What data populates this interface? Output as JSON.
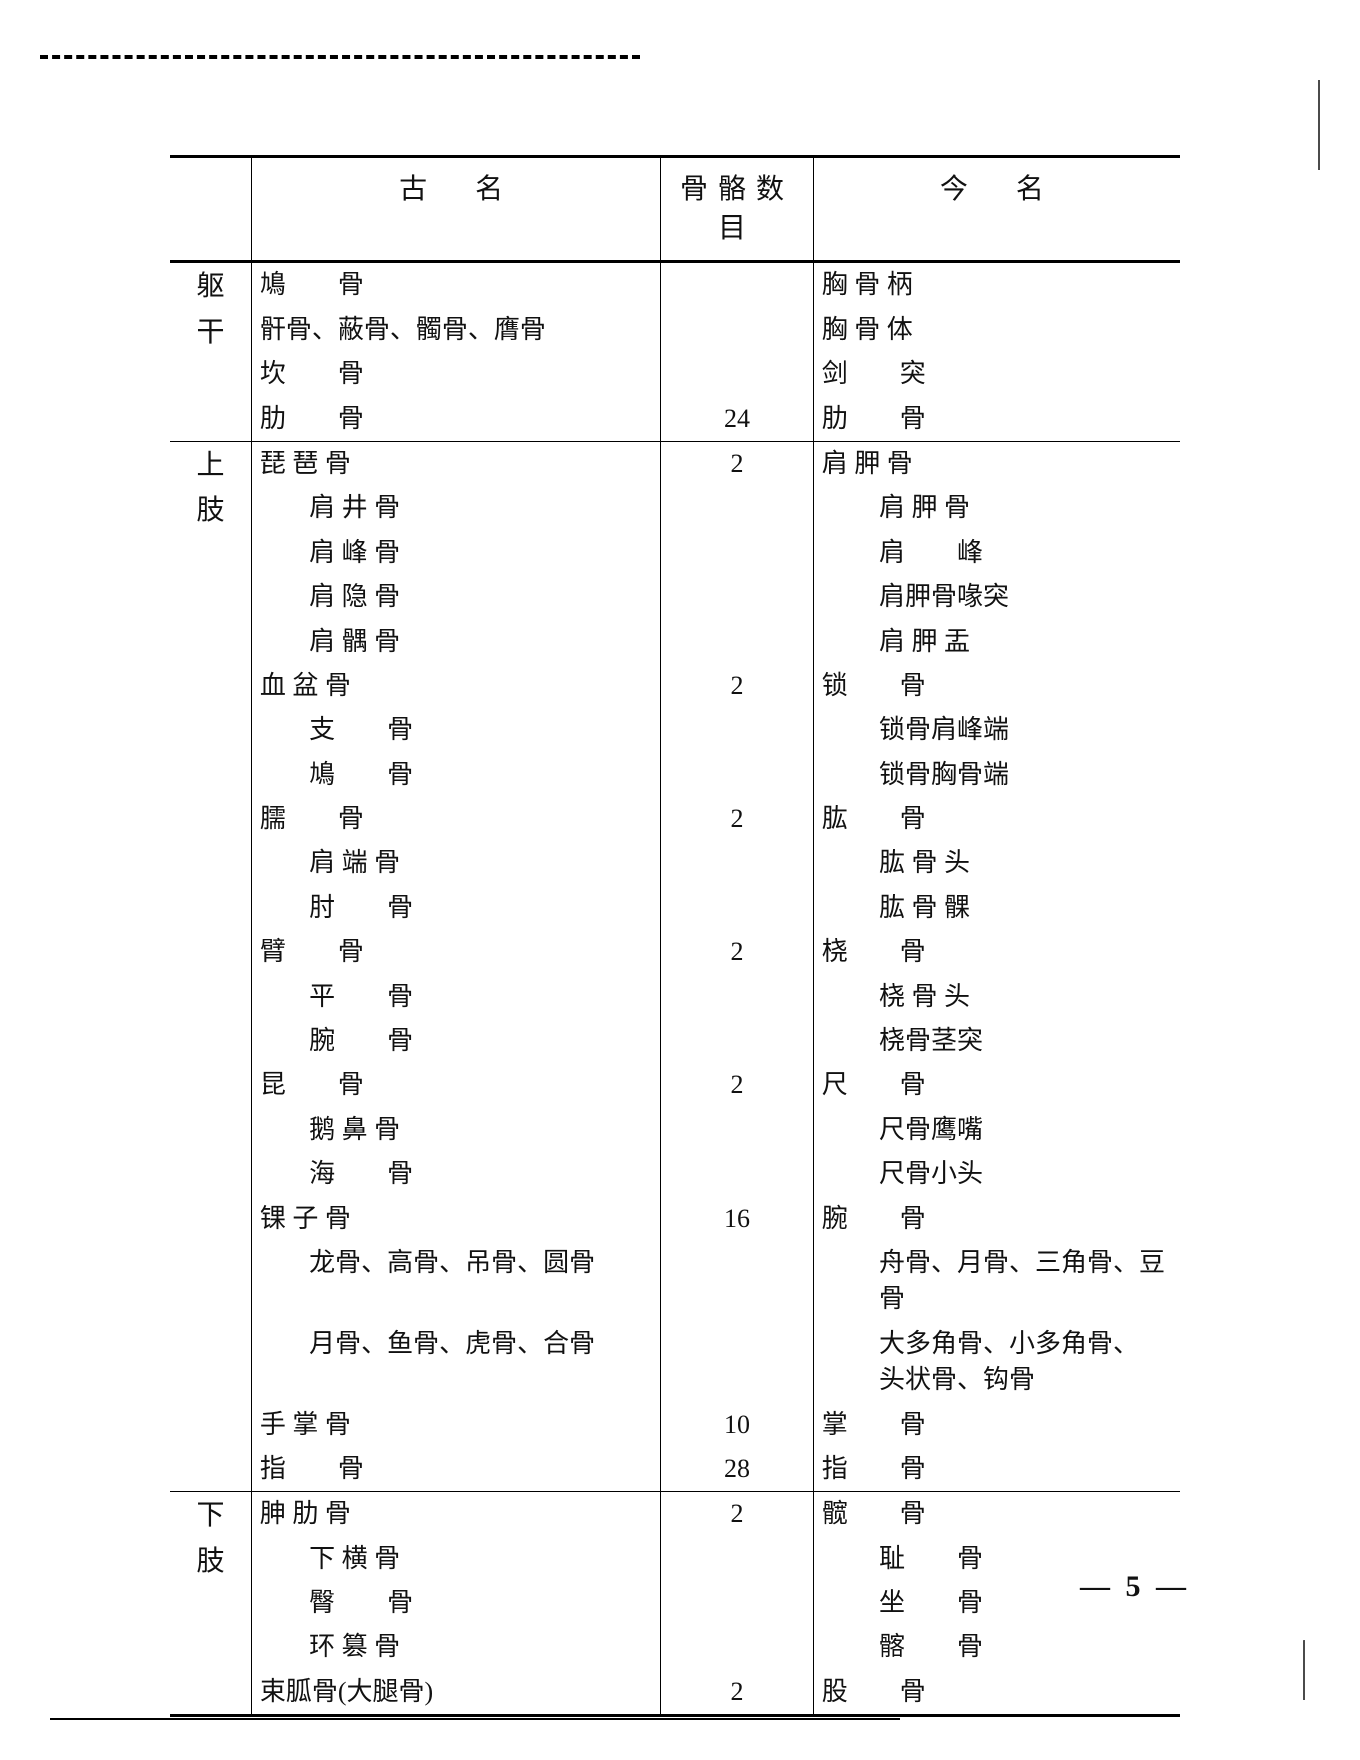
{
  "page_number": "— 5 —",
  "headers": {
    "old": "古　名",
    "count": "骨骼数目",
    "new": "今　名"
  },
  "sections": [
    {
      "label": "躯干",
      "rows": [
        {
          "old": "鳩　　骨",
          "num": "",
          "new": "胸 骨 柄"
        },
        {
          "old": "骭骨、蔽骨、髑骨、膺骨",
          "num": "",
          "new": "胸 骨 体"
        },
        {
          "old": "坎　　骨",
          "num": "",
          "new": "剑　　突"
        },
        {
          "old": "肋　　骨",
          "num": "24",
          "new": "肋　　骨"
        }
      ]
    },
    {
      "label": "上肢",
      "rows": [
        {
          "old": "琵 琶 骨",
          "num": "2",
          "new": "肩 胛 骨"
        },
        {
          "old": "肩 井 骨",
          "sub": true,
          "num": "",
          "new": "肩 胛 骨",
          "nsub": true
        },
        {
          "old": "肩 峰 骨",
          "sub": true,
          "num": "",
          "new": "肩　　峰",
          "nsub": true
        },
        {
          "old": "肩 隐 骨",
          "sub": true,
          "num": "",
          "new": "肩胛骨喙突",
          "nsub": true
        },
        {
          "old": "肩 髃 骨",
          "sub": true,
          "num": "",
          "new": "肩 胛 盂",
          "nsub": true
        },
        {
          "old": "血 盆 骨",
          "num": "2",
          "new": "锁　　骨"
        },
        {
          "old": "支　　骨",
          "sub": true,
          "num": "",
          "new": "锁骨肩峰端",
          "nsub": true
        },
        {
          "old": "鳩　　骨",
          "sub": true,
          "num": "",
          "new": "锁骨胸骨端",
          "nsub": true
        },
        {
          "old": "臑　　骨",
          "num": "2",
          "new": "肱　　骨"
        },
        {
          "old": "肩 端 骨",
          "sub": true,
          "num": "",
          "new": "肱 骨 头",
          "nsub": true
        },
        {
          "old": "肘　　骨",
          "sub": true,
          "num": "",
          "new": "肱 骨 髁",
          "nsub": true
        },
        {
          "old": "臂　　骨",
          "num": "2",
          "new": "桡　　骨"
        },
        {
          "old": "平　　骨",
          "sub": true,
          "num": "",
          "new": "桡 骨 头",
          "nsub": true
        },
        {
          "old": "腕　　骨",
          "sub": true,
          "num": "",
          "new": "桡骨茎突",
          "nsub": true
        },
        {
          "old": "昆　　骨",
          "num": "2",
          "new": "尺　　骨"
        },
        {
          "old": "鹅 鼻 骨",
          "sub": true,
          "num": "",
          "new": "尺骨鹰嘴",
          "nsub": true
        },
        {
          "old": "海　　骨",
          "sub": true,
          "num": "",
          "new": "尺骨小头",
          "nsub": true
        },
        {
          "old": "锞 子 骨",
          "num": "16",
          "new": "腕　　骨"
        },
        {
          "old": "龙骨、高骨、吊骨、圆骨",
          "sub": true,
          "num": "",
          "new": "舟骨、月骨、三角骨、豆骨",
          "nsub": true
        },
        {
          "old": "月骨、鱼骨、虎骨、合骨",
          "sub": true,
          "num": "",
          "new": "大多角骨、小多角骨、<br>头状骨、钩骨",
          "nsub": true
        },
        {
          "old": "手 掌 骨",
          "num": "10",
          "new": "掌　　骨"
        },
        {
          "old": "指　　骨",
          "num": "28",
          "new": "指　　骨"
        }
      ]
    },
    {
      "label": "下肢",
      "rows": [
        {
          "old": "胂 肋 骨",
          "num": "2",
          "new": "髋　　骨"
        },
        {
          "old": "下 横 骨",
          "sub": true,
          "num": "",
          "new": "耻　　骨",
          "nsub": true
        },
        {
          "old": "臀　　骨",
          "sub": true,
          "num": "",
          "new": "坐　　骨",
          "nsub": true
        },
        {
          "old": "环 篡 骨",
          "sub": true,
          "num": "",
          "new": "髂　　骨",
          "nsub": true
        },
        {
          "old": "束胍骨(大腿骨)",
          "num": "2",
          "new": "股　　骨"
        }
      ]
    }
  ]
}
